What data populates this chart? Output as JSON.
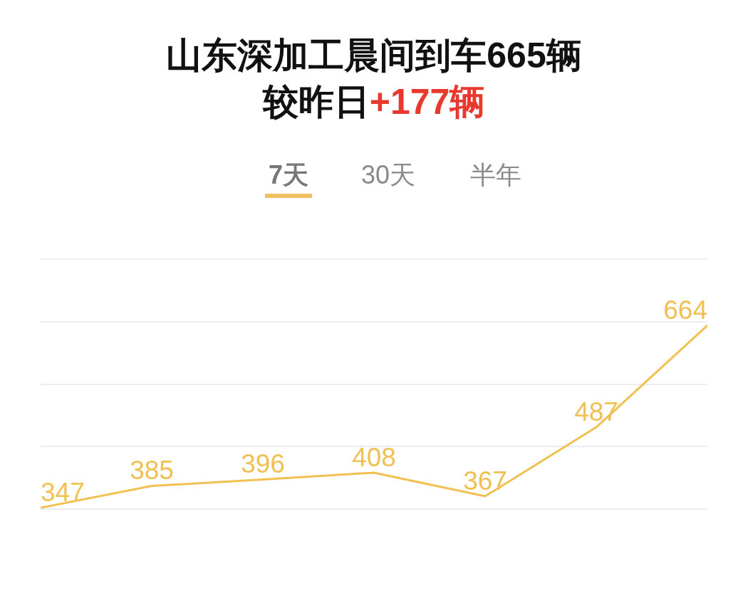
{
  "chart_data": {
    "type": "line",
    "title": "山东深加工晨间到车665辆",
    "subtitle": "较昨日+177辆",
    "annotations": [
      "7天",
      "30天",
      "半年"
    ],
    "categories": [
      null,
      null,
      null,
      null,
      null,
      null,
      null
    ],
    "values": [
      347,
      385,
      396,
      408,
      367,
      487,
      664
    ],
    "color": "#f2c052",
    "ylim": [
      346,
      778
    ],
    "yticks": [
      {
        "value": 346,
        "label": null
      },
      {
        "value": 454,
        "label": null
      },
      {
        "value": 562,
        "label": null
      },
      {
        "value": 670,
        "label": null
      },
      {
        "value": 778,
        "label": null
      }
    ],
    "grid": "y",
    "data_labels": true,
    "marker": "none",
    "line_style": "solid",
    "legend": false
  }
}
